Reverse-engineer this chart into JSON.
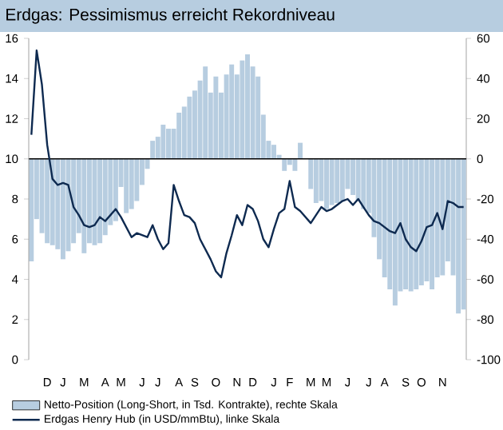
{
  "chart_data": {
    "type": "bar",
    "title": "Erdgas: Pessimismus erreicht Rekordniveau",
    "categories": [
      null,
      null,
      null,
      "D",
      null,
      null,
      "J",
      null,
      null,
      null,
      "M",
      null,
      null,
      null,
      "A",
      null,
      null,
      "M",
      null,
      null,
      null,
      "J",
      null,
      null,
      "J",
      null,
      null,
      null,
      "A",
      null,
      null,
      "S",
      null,
      null,
      null,
      "O",
      null,
      null,
      null,
      "N",
      null,
      null,
      "D",
      null,
      null,
      null,
      "J",
      null,
      null,
      "F",
      null,
      null,
      null,
      "M",
      null,
      null,
      "M",
      null,
      null,
      null,
      "J",
      null,
      null,
      null,
      "J",
      null,
      null,
      "A",
      null,
      null,
      null,
      "S",
      null,
      null,
      "O",
      null,
      null,
      null,
      "N",
      null,
      null,
      null,
      null
    ],
    "ylim": [
      0,
      16
    ],
    "yticks": [
      0,
      2,
      4,
      6,
      8,
      10,
      12,
      14,
      16
    ],
    "y2lim": [
      -100,
      60
    ],
    "y2ticks": [
      -100,
      -80,
      -60,
      -40,
      -20,
      0,
      20,
      40,
      60
    ],
    "legend": "bottom",
    "ref_lines": [
      {
        "axis": "y2",
        "value": 0,
        "color": "#000000"
      }
    ],
    "series": [
      {
        "name": "Netto-Position (Long-Short, in Tsd. Kontrakte), rechte Skala",
        "axis": "y2",
        "color": "#b7cde0",
        "values": [
          -51,
          -30,
          -37,
          -42,
          -43,
          -45,
          -50,
          -46,
          -42,
          -37,
          -47,
          -42,
          -43,
          -42,
          -38,
          -33,
          -31,
          -14,
          -27,
          -25,
          -21,
          -13,
          -5,
          9,
          11,
          17,
          15,
          15,
          23,
          26,
          31,
          34,
          39,
          46,
          33,
          41,
          33,
          42,
          47,
          42,
          49,
          52,
          46,
          41,
          22,
          9,
          7,
          2,
          -6,
          -3,
          -6,
          8,
          null,
          -15,
          -22,
          -21,
          -25,
          -23,
          -22,
          -21,
          -15,
          -18,
          -21,
          -25,
          -27,
          -39,
          -50,
          -59,
          -65,
          -73,
          -66,
          -65,
          -66,
          -65,
          -63,
          -61,
          -65,
          -59,
          -58,
          -51,
          -58,
          -77,
          -75
        ]
      },
      {
        "name": "Erdgas Henry Hub (in USD/mmBtu), linke Skala",
        "type": "line",
        "color": "#0e2a50",
        "values": [
          11.2,
          15.4,
          13.7,
          10.7,
          9.0,
          8.7,
          8.8,
          8.7,
          7.6,
          7.2,
          6.7,
          6.6,
          6.7,
          7.1,
          6.9,
          7.2,
          7.5,
          7.1,
          6.6,
          6.1,
          6.3,
          6.2,
          6.1,
          6.7,
          6.0,
          5.5,
          5.8,
          8.7,
          7.9,
          7.2,
          7.1,
          6.8,
          6.0,
          5.5,
          5.0,
          4.4,
          4.1,
          5.3,
          6.2,
          7.2,
          6.7,
          7.7,
          7.5,
          6.9,
          6.0,
          5.6,
          6.5,
          7.3,
          7.5,
          8.9,
          7.6,
          7.4,
          7.1,
          6.8,
          7.2,
          7.6,
          7.4,
          7.5,
          7.7,
          7.9,
          8.0,
          7.7,
          8.0,
          7.6,
          7.2,
          6.9,
          6.8,
          6.6,
          6.4,
          6.3,
          6.8,
          6.0,
          5.6,
          5.4,
          5.9,
          6.6,
          6.7,
          7.3,
          6.5,
          7.9,
          7.8,
          7.6,
          7.6
        ]
      }
    ]
  }
}
